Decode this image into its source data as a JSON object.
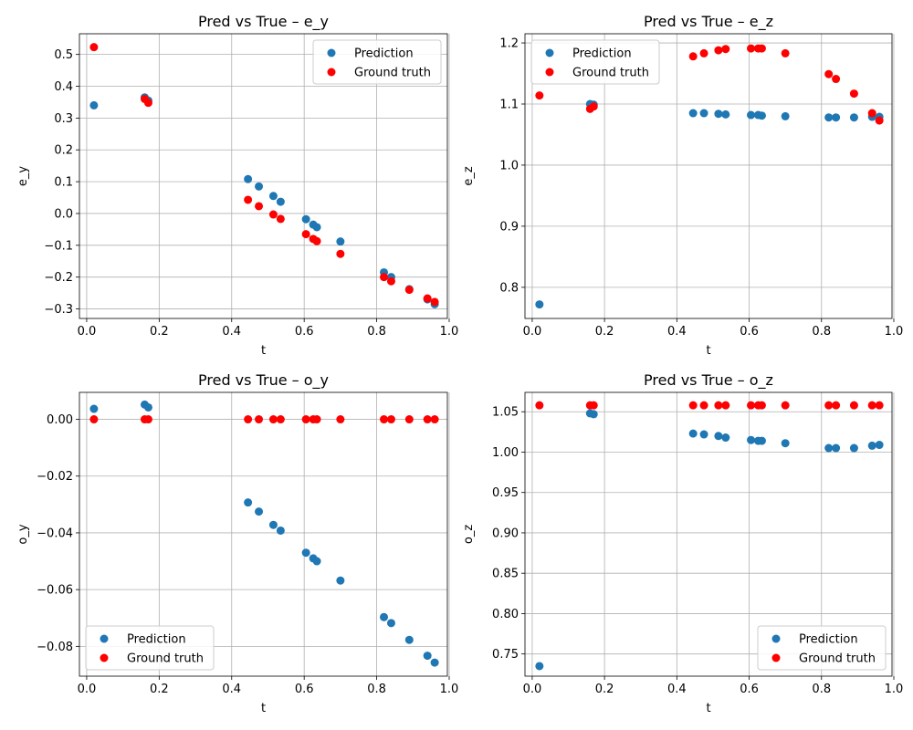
{
  "chart_data": [
    {
      "type": "scatter",
      "title": "Pred vs True – e_y",
      "xlabel": "t",
      "ylabel": "e_y",
      "xlim": [
        -0.02,
        0.995
      ],
      "ylim": [
        -0.33,
        0.565
      ],
      "xticks": [
        0.0,
        0.2,
        0.4,
        0.6,
        0.8,
        1.0
      ],
      "xtick_labels": [
        "0.0",
        "0.2",
        "0.4",
        "0.6",
        "0.8",
        "1.0"
      ],
      "yticks": [
        -0.3,
        -0.2,
        -0.1,
        0.0,
        0.1,
        0.2,
        0.3,
        0.4,
        0.5
      ],
      "ytick_labels": [
        "−0.3",
        "−0.2",
        "−0.1",
        "0.0",
        "0.1",
        "0.2",
        "0.3",
        "0.4",
        "0.5"
      ],
      "grid": true,
      "legend": "upper right",
      "series": [
        {
          "name": "Prediction",
          "color": "#1f77b4",
          "x": [
            0.02,
            0.16,
            0.17,
            0.445,
            0.475,
            0.515,
            0.535,
            0.605,
            0.625,
            0.635,
            0.7,
            0.82,
            0.84,
            0.89,
            0.94,
            0.96
          ],
          "y": [
            0.34,
            0.365,
            0.355,
            0.108,
            0.085,
            0.055,
            0.037,
            -0.018,
            -0.035,
            -0.043,
            -0.088,
            -0.185,
            -0.2,
            -0.238,
            -0.27,
            -0.285
          ]
        },
        {
          "name": "Ground truth",
          "color": "#ff0000",
          "x": [
            0.02,
            0.16,
            0.17,
            0.445,
            0.475,
            0.515,
            0.535,
            0.605,
            0.625,
            0.635,
            0.7,
            0.82,
            0.84,
            0.89,
            0.94,
            0.96
          ],
          "y": [
            0.523,
            0.36,
            0.348,
            0.043,
            0.023,
            -0.003,
            -0.017,
            -0.065,
            -0.08,
            -0.087,
            -0.127,
            -0.2,
            -0.213,
            -0.24,
            -0.267,
            -0.278
          ]
        }
      ]
    },
    {
      "type": "scatter",
      "title": "Pred vs True – e_z",
      "xlabel": "t",
      "ylabel": "e_z",
      "xlim": [
        -0.02,
        0.995
      ],
      "ylim": [
        0.749,
        1.215
      ],
      "xticks": [
        0.0,
        0.2,
        0.4,
        0.6,
        0.8,
        1.0
      ],
      "xtick_labels": [
        "0.0",
        "0.2",
        "0.4",
        "0.6",
        "0.8",
        "1.0"
      ],
      "yticks": [
        0.8,
        0.9,
        1.0,
        1.1,
        1.2
      ],
      "ytick_labels": [
        "0.8",
        "0.9",
        "1.0",
        "1.1",
        "1.2"
      ],
      "grid": true,
      "legend": "upper left",
      "series": [
        {
          "name": "Prediction",
          "color": "#1f77b4",
          "x": [
            0.02,
            0.16,
            0.17,
            0.445,
            0.475,
            0.515,
            0.535,
            0.605,
            0.625,
            0.635,
            0.7,
            0.82,
            0.84,
            0.89,
            0.94,
            0.96
          ],
          "y": [
            0.772,
            1.1,
            1.099,
            1.085,
            1.085,
            1.084,
            1.083,
            1.082,
            1.082,
            1.081,
            1.08,
            1.078,
            1.078,
            1.078,
            1.079,
            1.079
          ]
        },
        {
          "name": "Ground truth",
          "color": "#ff0000",
          "x": [
            0.02,
            0.16,
            0.17,
            0.445,
            0.475,
            0.515,
            0.535,
            0.605,
            0.625,
            0.635,
            0.7,
            0.82,
            0.84,
            0.89,
            0.94,
            0.96
          ],
          "y": [
            1.114,
            1.092,
            1.096,
            1.178,
            1.183,
            1.188,
            1.19,
            1.191,
            1.191,
            1.191,
            1.183,
            1.149,
            1.141,
            1.117,
            1.085,
            1.073
          ]
        }
      ]
    },
    {
      "type": "scatter",
      "title": "Pred vs True – o_y",
      "xlabel": "t",
      "ylabel": "o_y",
      "xlim": [
        -0.02,
        0.995
      ],
      "ylim": [
        -0.0905,
        0.0095
      ],
      "xticks": [
        0.0,
        0.2,
        0.4,
        0.6,
        0.8,
        1.0
      ],
      "xtick_labels": [
        "0.0",
        "0.2",
        "0.4",
        "0.6",
        "0.8",
        "1.0"
      ],
      "yticks": [
        -0.08,
        -0.06,
        -0.04,
        -0.02,
        0.0
      ],
      "ytick_labels": [
        "−0.08",
        "−0.06",
        "−0.04",
        "−0.02",
        "0.00"
      ],
      "grid": true,
      "legend": "lower left",
      "series": [
        {
          "name": "Prediction",
          "color": "#1f77b4",
          "x": [
            0.02,
            0.16,
            0.17,
            0.445,
            0.475,
            0.515,
            0.535,
            0.605,
            0.625,
            0.635,
            0.7,
            0.82,
            0.84,
            0.89,
            0.94,
            0.96
          ],
          "y": [
            0.0037,
            0.0052,
            0.0042,
            -0.0293,
            -0.0325,
            -0.0372,
            -0.0392,
            -0.047,
            -0.049,
            -0.05,
            -0.0568,
            -0.0697,
            -0.0718,
            -0.0777,
            -0.0833,
            -0.0857
          ]
        },
        {
          "name": "Ground truth",
          "color": "#ff0000",
          "x": [
            0.02,
            0.16,
            0.17,
            0.445,
            0.475,
            0.515,
            0.535,
            0.605,
            0.625,
            0.635,
            0.7,
            0.82,
            0.84,
            0.89,
            0.94,
            0.96
          ],
          "y": [
            0,
            0,
            0,
            0,
            0,
            0,
            0,
            0,
            0,
            0,
            0,
            0,
            0,
            0,
            0,
            0
          ]
        }
      ]
    },
    {
      "type": "scatter",
      "title": "Pred vs True – o_z",
      "xlabel": "t",
      "ylabel": "o_z",
      "xlim": [
        -0.02,
        0.995
      ],
      "ylim": [
        0.7225,
        1.074
      ],
      "xticks": [
        0.0,
        0.2,
        0.4,
        0.6,
        0.8,
        1.0
      ],
      "xtick_labels": [
        "0.0",
        "0.2",
        "0.4",
        "0.6",
        "0.8",
        "1.0"
      ],
      "yticks": [
        0.75,
        0.8,
        0.85,
        0.9,
        0.95,
        1.0,
        1.05
      ],
      "ytick_labels": [
        "0.75",
        "0.80",
        "0.85",
        "0.90",
        "0.95",
        "1.00",
        "1.05"
      ],
      "grid": true,
      "legend": "lower right",
      "series": [
        {
          "name": "Prediction",
          "color": "#1f77b4",
          "x": [
            0.02,
            0.16,
            0.17,
            0.445,
            0.475,
            0.515,
            0.535,
            0.605,
            0.625,
            0.635,
            0.7,
            0.82,
            0.84,
            0.89,
            0.94,
            0.96
          ],
          "y": [
            0.735,
            1.048,
            1.047,
            1.023,
            1.022,
            1.02,
            1.018,
            1.015,
            1.014,
            1.014,
            1.011,
            1.005,
            1.005,
            1.005,
            1.008,
            1.009
          ]
        },
        {
          "name": "Ground truth",
          "color": "#ff0000",
          "x": [
            0.02,
            0.16,
            0.17,
            0.445,
            0.475,
            0.515,
            0.535,
            0.605,
            0.625,
            0.635,
            0.7,
            0.82,
            0.84,
            0.89,
            0.94,
            0.96
          ],
          "y": [
            1.058,
            1.058,
            1.058,
            1.058,
            1.058,
            1.058,
            1.058,
            1.058,
            1.058,
            1.058,
            1.058,
            1.058,
            1.058,
            1.058,
            1.058,
            1.058
          ]
        }
      ]
    }
  ]
}
